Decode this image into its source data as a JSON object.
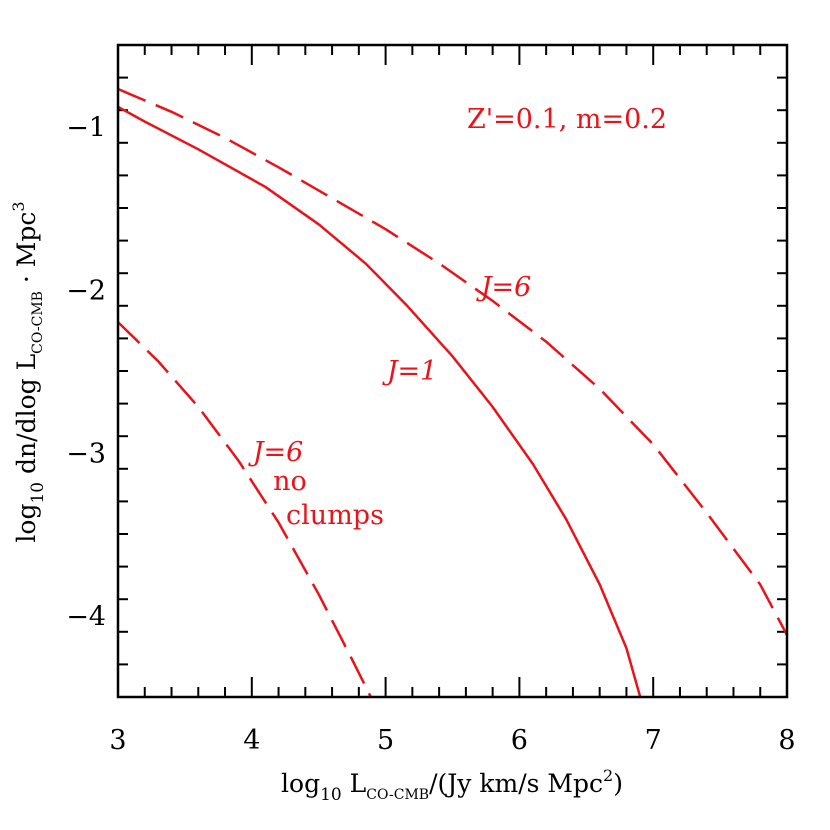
{
  "chart_data": {
    "type": "line",
    "x_axis": {
      "label_main": "log",
      "label_sub": "10",
      "label_L": " L",
      "label_L_sub": "CO-CMB",
      "label_rest": "/(Jy km/s Mpc",
      "label_sup": "2",
      "label_end": ")",
      "range": [
        3,
        8
      ],
      "ticks": [
        3,
        4,
        5,
        6,
        7,
        8
      ],
      "tick_labels": [
        "3",
        "4",
        "5",
        "6",
        "7",
        "8"
      ]
    },
    "y_axis": {
      "label_main": "log",
      "label_sub": "10",
      "label_mid": " dn/dlog L",
      "label_L_sub": "CO-CMB",
      "label_rest": " · Mpc",
      "label_sup": "3",
      "range": [
        -4.5,
        -0.5
      ],
      "ticks": [
        -1,
        -2,
        -3,
        -4
      ],
      "tick_labels": [
        "−1",
        "−2",
        "−3",
        "−4"
      ]
    },
    "series": [
      {
        "style": "solid",
        "color": "#e8141c",
        "x": [
          3.0,
          3.2,
          3.6,
          4.1,
          4.5,
          4.85,
          5.15,
          5.5,
          5.8,
          6.1,
          6.35,
          6.6,
          6.8,
          6.92
        ],
        "y": [
          -0.88,
          -0.97,
          -1.14,
          -1.37,
          -1.6,
          -1.84,
          -2.09,
          -2.41,
          -2.72,
          -3.07,
          -3.41,
          -3.81,
          -4.2,
          -4.55
        ]
      },
      {
        "style": "dashed",
        "color": "#e8141c",
        "x": [
          3.0,
          3.4,
          3.8,
          4.2,
          4.6,
          5.0,
          5.4,
          5.8,
          6.2,
          6.6,
          7.0,
          7.4,
          7.8,
          8.0
        ],
        "y": [
          -0.77,
          -0.91,
          -1.07,
          -1.25,
          -1.44,
          -1.63,
          -1.84,
          -2.07,
          -2.32,
          -2.61,
          -2.95,
          -3.37,
          -3.81,
          -4.12
        ]
      },
      {
        "style": "dashed",
        "color": "#e8141c",
        "x": [
          3.0,
          3.3,
          3.6,
          3.9,
          4.2,
          4.5,
          4.75,
          4.95
        ],
        "y": [
          -2.2,
          -2.44,
          -2.72,
          -3.05,
          -3.43,
          -3.87,
          -4.27,
          -4.6
        ]
      }
    ],
    "annotations": {
      "top": "Z'=0.1, m=0.2",
      "j6_upper": "J=6",
      "j1": "J=1",
      "j6_lower": "J=6",
      "no": "no",
      "clumps": "clumps"
    }
  }
}
